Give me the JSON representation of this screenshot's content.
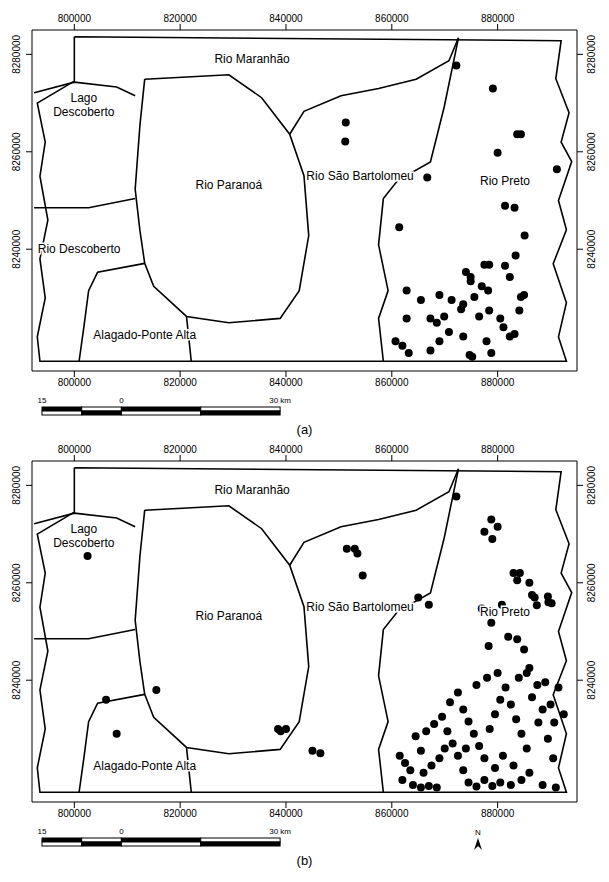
{
  "chart_data": [
    {
      "type": "scatter",
      "title": "(a)",
      "xlim": [
        792000,
        895000
      ],
      "ylim": [
        8215000,
        8285000
      ],
      "xticks": [
        800000,
        820000,
        840000,
        860000,
        880000
      ],
      "yticks": [
        8240000,
        8260000,
        8280000
      ],
      "color": "#000000",
      "marker": "circle",
      "x": [
        872200,
        879100,
        851300,
        851200,
        883700,
        884400,
        891200,
        866700,
        880000,
        881400,
        883200,
        861400,
        885100,
        877500,
        878400,
        881400,
        883400,
        882300,
        874000,
        874900,
        877000,
        878200,
        885000,
        884400,
        862800,
        865500,
        869000,
        871300,
        873500,
        874900,
        875600,
        867300,
        868500,
        869900,
        873100,
        876500,
        878400,
        880500,
        882300,
        883200,
        862800,
        860700,
        862000,
        863200,
        867300,
        869000,
        870800,
        873500,
        874700,
        875200,
        878800,
        877900,
        884100,
        881100
      ],
      "values": [
        8277700,
        8273000,
        8266000,
        8262100,
        8263600,
        8263600,
        8256400,
        8254700,
        8259800,
        8248900,
        8248500,
        8244500,
        8242800,
        8236800,
        8236800,
        8236600,
        8238700,
        8234300,
        8235300,
        8234300,
        8232400,
        8231500,
        8230600,
        8230200,
        8231500,
        8229600,
        8230600,
        8229600,
        8228700,
        8233400,
        8230200,
        8225800,
        8224900,
        8226200,
        8227700,
        8226200,
        8227400,
        8225800,
        8222100,
        8222600,
        8225800,
        8221100,
        8220200,
        8218700,
        8219200,
        8221100,
        8223000,
        8222100,
        8218300,
        8217900,
        8218700,
        8221100,
        8227400,
        8224000
      ],
      "regions": [
        {
          "label": [
            "Rio Maranhão"
          ],
          "x": 833600,
          "y": 8279100
        },
        {
          "label": [
            "Lago",
            "Descoberto"
          ],
          "x": 801800,
          "y": 8269600
        },
        {
          "label": [
            "Rio Paranoá"
          ],
          "x": 829200,
          "y": 8253200
        },
        {
          "label": [
            "Rio São Bartolomeu"
          ],
          "x": 854000,
          "y": 8255100
        },
        {
          "label": [
            "Rio Preto"
          ],
          "x": 881400,
          "y": 8254100
        },
        {
          "label": [
            "Rio Descoberto"
          ],
          "x": 800900,
          "y": 8240000
        },
        {
          "label": [
            "Alagado-Ponte Alta"
          ],
          "x": 813300,
          "y": 8222400
        }
      ],
      "boundaries": [
        [
          [
            800000,
            8283600
          ],
          [
            892000,
            8282800
          ],
          [
            891000,
            8275000
          ],
          [
            893500,
            8268000
          ],
          [
            892000,
            8262000
          ],
          [
            894000,
            8258000
          ],
          [
            891500,
            8250000
          ],
          [
            893000,
            8244000
          ],
          [
            890500,
            8237000
          ],
          [
            893000,
            8229000
          ],
          [
            891500,
            8222000
          ],
          [
            893000,
            8217000
          ],
          [
            793500,
            8217000
          ],
          [
            793000,
            8222000
          ],
          [
            794500,
            8230000
          ],
          [
            793500,
            8238000
          ],
          [
            795000,
            8246000
          ],
          [
            793500,
            8255000
          ],
          [
            794500,
            8262000
          ],
          [
            793000,
            8270000
          ],
          [
            800000,
            8274500
          ],
          [
            800000,
            8283600
          ]
        ],
        [
          [
            813300,
            8274900
          ],
          [
            829200,
            8275800
          ],
          [
            835400,
            8271100
          ],
          [
            840700,
            8263600
          ],
          [
            843400,
            8255100
          ],
          [
            844300,
            8242800
          ],
          [
            842500,
            8231500
          ],
          [
            838900,
            8225800
          ],
          [
            829200,
            8224900
          ],
          [
            821200,
            8226200
          ],
          [
            815000,
            8232400
          ],
          [
            813300,
            8237100
          ],
          [
            812400,
            8243800
          ],
          [
            811500,
            8252300
          ],
          [
            812400,
            8265500
          ],
          [
            813300,
            8274900
          ]
        ],
        [
          [
            792400,
            8272100
          ],
          [
            800000,
            8274300
          ],
          [
            808000,
            8273300
          ],
          [
            811500,
            8271500
          ]
        ],
        [
          [
            811500,
            8250400
          ],
          [
            802700,
            8248500
          ],
          [
            792400,
            8248500
          ]
        ],
        [
          [
            813300,
            8237100
          ],
          [
            804400,
            8235300
          ],
          [
            802700,
            8231500
          ],
          [
            801800,
            8224000
          ],
          [
            800900,
            8217000
          ]
        ],
        [
          [
            821200,
            8226200
          ],
          [
            822100,
            8217000
          ]
        ],
        [
          [
            840700,
            8263600
          ],
          [
            843400,
            8268300
          ],
          [
            850400,
            8271500
          ],
          [
            857500,
            8273000
          ],
          [
            864600,
            8274900
          ],
          [
            870800,
            8278700
          ],
          [
            872600,
            8283400
          ]
        ],
        [
          [
            872600,
            8283400
          ],
          [
            869900,
            8269200
          ],
          [
            867300,
            8257900
          ],
          [
            861100,
            8254100
          ],
          [
            858400,
            8250400
          ],
          [
            857500,
            8240900
          ],
          [
            859300,
            8231500
          ],
          [
            857500,
            8225800
          ],
          [
            858400,
            8217000
          ]
        ]
      ],
      "scale_bar": [
        {
          "value": -15000,
          "label": "15"
        },
        {
          "value": 0,
          "label": "0"
        },
        {
          "value": 30000,
          "label": "30 km"
        }
      ]
    },
    {
      "type": "scatter",
      "title": "(b)",
      "xlim": [
        792000,
        895000
      ],
      "ylim": [
        8215000,
        8285000
      ],
      "xticks": [
        800000,
        820000,
        840000,
        860000,
        880000
      ],
      "yticks": [
        8240000,
        8260000,
        8280000
      ],
      "color": "#000000",
      "marker": "circle",
      "x": [
        802500,
        806000,
        808000,
        815500,
        838500,
        839000,
        840000,
        845000,
        846500,
        851500,
        853000,
        853500,
        854500,
        872200,
        878800,
        880000,
        877500,
        879000,
        865000,
        867000,
        883000,
        884200,
        883700,
        886000,
        886500,
        887000,
        889500,
        889600,
        890200,
        887400,
        880800,
        877000,
        878800,
        878300,
        882000,
        883700,
        885000,
        885500,
        889000,
        890000,
        890700,
        887700,
        861500,
        862500,
        863500,
        862000,
        864000,
        865500,
        867000,
        868500,
        866000,
        867500,
        869000,
        865500,
        864500,
        866500,
        868000,
        869500,
        870500,
        871500,
        872500,
        873500,
        874500,
        876000,
        877500,
        879000,
        880500,
        882500,
        884500,
        886000,
        888500,
        891000,
        871000,
        872500,
        873500,
        874500,
        875500,
        876500,
        877500,
        878500,
        879500,
        880500,
        881500,
        882500,
        883500,
        884500,
        885500,
        886500,
        887500,
        888500,
        889500,
        890500,
        876000,
        878000,
        880000,
        884000,
        886000,
        874000,
        870000,
        881000,
        883000,
        879500,
        891500,
        892500
      ],
      "values": [
        8265500,
        8236000,
        8229000,
        8238000,
        8230000,
        8229500,
        8230000,
        8225500,
        8225000,
        8267000,
        8267000,
        8266000,
        8261500,
        8277700,
        8273000,
        8271500,
        8270500,
        8269000,
        8257000,
        8255500,
        8262000,
        8262000,
        8260500,
        8260000,
        8257500,
        8257000,
        8257200,
        8256000,
        8255800,
        8255400,
        8255500,
        8254700,
        8251800,
        8247000,
        8248900,
        8248400,
        8246300,
        8241500,
        8239600,
        8235000,
        8231300,
        8231300,
        8224500,
        8223000,
        8221500,
        8219500,
        8218500,
        8218000,
        8218300,
        8218000,
        8221000,
        8222500,
        8224000,
        8225500,
        8228500,
        8229500,
        8231000,
        8232500,
        8229500,
        8227000,
        8224500,
        8221500,
        8219000,
        8218200,
        8219500,
        8218300,
        8219000,
        8218500,
        8219500,
        8221000,
        8218500,
        8218000,
        8235500,
        8237500,
        8234000,
        8231500,
        8229000,
        8226500,
        8224000,
        8230000,
        8233000,
        8236000,
        8238500,
        8235000,
        8232000,
        8229000,
        8226000,
        8236500,
        8239000,
        8234000,
        8228000,
        8224000,
        8239000,
        8240500,
        8241500,
        8240500,
        8242500,
        8226000,
        8226000,
        8224500,
        8222500,
        8222000,
        8238500,
        8233000
      ],
      "regions": [
        {
          "label": [
            "Rio Maranhão"
          ],
          "x": 833600,
          "y": 8279100
        },
        {
          "label": [
            "Lago",
            "Descoberto"
          ],
          "x": 801800,
          "y": 8269600
        },
        {
          "label": [
            "Rio Paranoá"
          ],
          "x": 829200,
          "y": 8253200
        },
        {
          "label": [
            "Rio São Bartolomeu"
          ],
          "x": 854000,
          "y": 8255100
        },
        {
          "label": [
            "Rio Preto"
          ],
          "x": 881400,
          "y": 8254100
        },
        {
          "label": [
            "Alagado-Ponte Alta"
          ],
          "x": 813300,
          "y": 8222400
        }
      ],
      "boundaries": [
        [
          [
            800000,
            8283600
          ],
          [
            892000,
            8282800
          ],
          [
            891000,
            8275000
          ],
          [
            893500,
            8268000
          ],
          [
            892000,
            8262000
          ],
          [
            894000,
            8258000
          ],
          [
            891500,
            8250000
          ],
          [
            893000,
            8244000
          ],
          [
            890500,
            8237000
          ],
          [
            893000,
            8229000
          ],
          [
            891500,
            8222000
          ],
          [
            893000,
            8217000
          ],
          [
            793500,
            8217000
          ],
          [
            793000,
            8222000
          ],
          [
            794500,
            8230000
          ],
          [
            793500,
            8238000
          ],
          [
            795000,
            8246000
          ],
          [
            793500,
            8255000
          ],
          [
            794500,
            8262000
          ],
          [
            793000,
            8270000
          ],
          [
            800000,
            8274500
          ],
          [
            800000,
            8283600
          ]
        ],
        [
          [
            813300,
            8274900
          ],
          [
            829200,
            8275800
          ],
          [
            835400,
            8271100
          ],
          [
            840700,
            8263600
          ],
          [
            843400,
            8255100
          ],
          [
            844300,
            8242800
          ],
          [
            842500,
            8231500
          ],
          [
            838900,
            8225800
          ],
          [
            829200,
            8224900
          ],
          [
            821200,
            8226200
          ],
          [
            815000,
            8232400
          ],
          [
            813300,
            8237100
          ],
          [
            812400,
            8243800
          ],
          [
            811500,
            8252300
          ],
          [
            812400,
            8265500
          ],
          [
            813300,
            8274900
          ]
        ],
        [
          [
            792400,
            8272100
          ],
          [
            800000,
            8274300
          ],
          [
            808000,
            8273300
          ],
          [
            811500,
            8271500
          ]
        ],
        [
          [
            811500,
            8250400
          ],
          [
            802700,
            8248500
          ],
          [
            792400,
            8248500
          ]
        ],
        [
          [
            813300,
            8237100
          ],
          [
            804400,
            8235300
          ],
          [
            802700,
            8231500
          ],
          [
            801800,
            8224000
          ],
          [
            800900,
            8217000
          ]
        ],
        [
          [
            821200,
            8226200
          ],
          [
            822100,
            8217000
          ]
        ],
        [
          [
            840700,
            8263600
          ],
          [
            843400,
            8268300
          ],
          [
            850400,
            8271500
          ],
          [
            857500,
            8273000
          ],
          [
            864600,
            8274900
          ],
          [
            870800,
            8278700
          ],
          [
            872600,
            8283400
          ]
        ],
        [
          [
            872600,
            8283400
          ],
          [
            869900,
            8269200
          ],
          [
            867300,
            8257900
          ],
          [
            861100,
            8254100
          ],
          [
            858400,
            8250400
          ],
          [
            857500,
            8240900
          ],
          [
            859300,
            8231500
          ],
          [
            857500,
            8225800
          ],
          [
            858400,
            8217000
          ]
        ]
      ],
      "scale_bar": [
        {
          "value": -15000,
          "label": "15"
        },
        {
          "value": 0,
          "label": "0"
        },
        {
          "value": 30000,
          "label": "30 km"
        }
      ],
      "north_label": "N"
    }
  ]
}
